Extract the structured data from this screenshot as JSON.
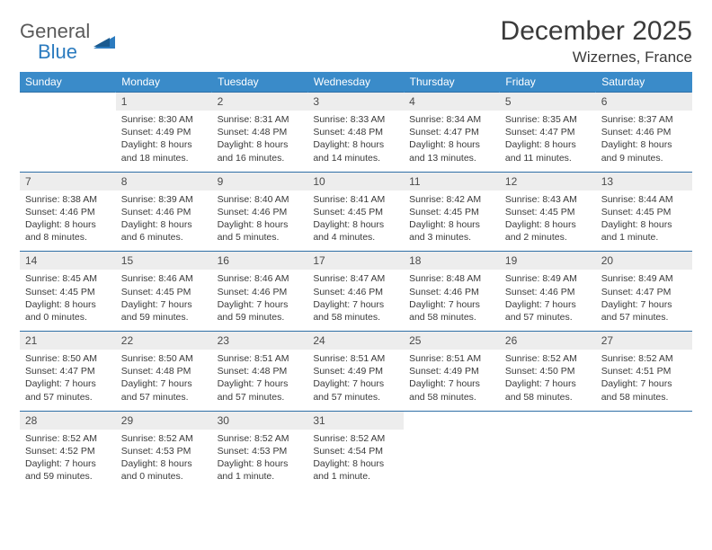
{
  "brand": {
    "word1": "General",
    "word2": "Blue",
    "word1_color": "#5a5a5a",
    "word2_color": "#2b7bbf",
    "icon_color": "#2b7bbf"
  },
  "title": "December 2025",
  "location": "Wizernes, France",
  "colors": {
    "header_bg": "#3a8bc9",
    "header_text": "#ffffff",
    "daynum_bg": "#ededed",
    "rule": "#2f6fa6",
    "body_text": "#3a3a3a"
  },
  "weekdays": [
    "Sunday",
    "Monday",
    "Tuesday",
    "Wednesday",
    "Thursday",
    "Friday",
    "Saturday"
  ],
  "weeks": [
    [
      null,
      {
        "n": "1",
        "sunrise": "8:30 AM",
        "sunset": "4:49 PM",
        "day_h": 8,
        "day_m": 18
      },
      {
        "n": "2",
        "sunrise": "8:31 AM",
        "sunset": "4:48 PM",
        "day_h": 8,
        "day_m": 16
      },
      {
        "n": "3",
        "sunrise": "8:33 AM",
        "sunset": "4:48 PM",
        "day_h": 8,
        "day_m": 14
      },
      {
        "n": "4",
        "sunrise": "8:34 AM",
        "sunset": "4:47 PM",
        "day_h": 8,
        "day_m": 13
      },
      {
        "n": "5",
        "sunrise": "8:35 AM",
        "sunset": "4:47 PM",
        "day_h": 8,
        "day_m": 11
      },
      {
        "n": "6",
        "sunrise": "8:37 AM",
        "sunset": "4:46 PM",
        "day_h": 8,
        "day_m": 9
      }
    ],
    [
      {
        "n": "7",
        "sunrise": "8:38 AM",
        "sunset": "4:46 PM",
        "day_h": 8,
        "day_m": 8
      },
      {
        "n": "8",
        "sunrise": "8:39 AM",
        "sunset": "4:46 PM",
        "day_h": 8,
        "day_m": 6
      },
      {
        "n": "9",
        "sunrise": "8:40 AM",
        "sunset": "4:46 PM",
        "day_h": 8,
        "day_m": 5
      },
      {
        "n": "10",
        "sunrise": "8:41 AM",
        "sunset": "4:45 PM",
        "day_h": 8,
        "day_m": 4
      },
      {
        "n": "11",
        "sunrise": "8:42 AM",
        "sunset": "4:45 PM",
        "day_h": 8,
        "day_m": 3
      },
      {
        "n": "12",
        "sunrise": "8:43 AM",
        "sunset": "4:45 PM",
        "day_h": 8,
        "day_m": 2
      },
      {
        "n": "13",
        "sunrise": "8:44 AM",
        "sunset": "4:45 PM",
        "day_h": 8,
        "day_m": 1
      }
    ],
    [
      {
        "n": "14",
        "sunrise": "8:45 AM",
        "sunset": "4:45 PM",
        "day_h": 8,
        "day_m": 0
      },
      {
        "n": "15",
        "sunrise": "8:46 AM",
        "sunset": "4:45 PM",
        "day_h": 7,
        "day_m": 59
      },
      {
        "n": "16",
        "sunrise": "8:46 AM",
        "sunset": "4:46 PM",
        "day_h": 7,
        "day_m": 59
      },
      {
        "n": "17",
        "sunrise": "8:47 AM",
        "sunset": "4:46 PM",
        "day_h": 7,
        "day_m": 58
      },
      {
        "n": "18",
        "sunrise": "8:48 AM",
        "sunset": "4:46 PM",
        "day_h": 7,
        "day_m": 58
      },
      {
        "n": "19",
        "sunrise": "8:49 AM",
        "sunset": "4:46 PM",
        "day_h": 7,
        "day_m": 57
      },
      {
        "n": "20",
        "sunrise": "8:49 AM",
        "sunset": "4:47 PM",
        "day_h": 7,
        "day_m": 57
      }
    ],
    [
      {
        "n": "21",
        "sunrise": "8:50 AM",
        "sunset": "4:47 PM",
        "day_h": 7,
        "day_m": 57
      },
      {
        "n": "22",
        "sunrise": "8:50 AM",
        "sunset": "4:48 PM",
        "day_h": 7,
        "day_m": 57
      },
      {
        "n": "23",
        "sunrise": "8:51 AM",
        "sunset": "4:48 PM",
        "day_h": 7,
        "day_m": 57
      },
      {
        "n": "24",
        "sunrise": "8:51 AM",
        "sunset": "4:49 PM",
        "day_h": 7,
        "day_m": 57
      },
      {
        "n": "25",
        "sunrise": "8:51 AM",
        "sunset": "4:49 PM",
        "day_h": 7,
        "day_m": 58
      },
      {
        "n": "26",
        "sunrise": "8:52 AM",
        "sunset": "4:50 PM",
        "day_h": 7,
        "day_m": 58
      },
      {
        "n": "27",
        "sunrise": "8:52 AM",
        "sunset": "4:51 PM",
        "day_h": 7,
        "day_m": 58
      }
    ],
    [
      {
        "n": "28",
        "sunrise": "8:52 AM",
        "sunset": "4:52 PM",
        "day_h": 7,
        "day_m": 59
      },
      {
        "n": "29",
        "sunrise": "8:52 AM",
        "sunset": "4:53 PM",
        "day_h": 8,
        "day_m": 0
      },
      {
        "n": "30",
        "sunrise": "8:52 AM",
        "sunset": "4:53 PM",
        "day_h": 8,
        "day_m": 1
      },
      {
        "n": "31",
        "sunrise": "8:52 AM",
        "sunset": "4:54 PM",
        "day_h": 8,
        "day_m": 1
      },
      null,
      null,
      null
    ]
  ],
  "labels": {
    "sunrise": "Sunrise:",
    "sunset": "Sunset:",
    "daylight": "Daylight:",
    "hours": "hours",
    "and": "and",
    "minutes_singular": "minute.",
    "minutes_plural": "minutes."
  }
}
